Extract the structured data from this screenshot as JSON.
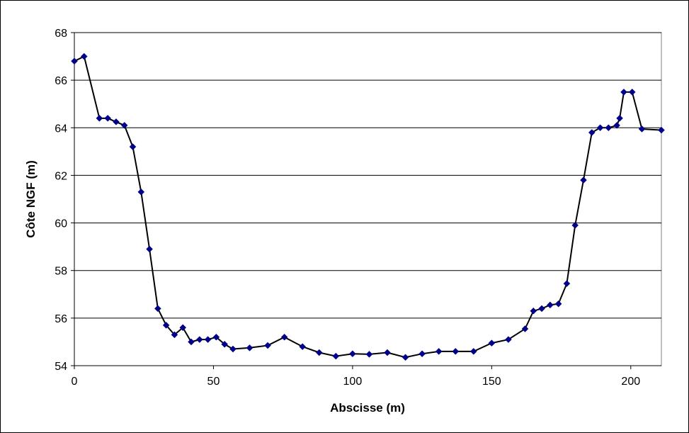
{
  "chart_data": {
    "type": "line",
    "title": "",
    "xlabel": "Abscisse (m)",
    "ylabel": "Côte NGF (m)",
    "xlim": [
      0,
      211
    ],
    "ylim": [
      54,
      68
    ],
    "xticks": [
      0,
      50,
      100,
      150,
      200
    ],
    "yticks": [
      54,
      56,
      58,
      60,
      62,
      64,
      66,
      68
    ],
    "grid": "horizontal",
    "legend": "none",
    "colors": {
      "line": "#000000",
      "marker": "#00008B",
      "grid": "#000000",
      "background": "#ffffff"
    },
    "series": [
      {
        "marker": "diamond",
        "points": [
          [
            0,
            66.8
          ],
          [
            3.5,
            67.0
          ],
          [
            9,
            64.4
          ],
          [
            12,
            64.4
          ],
          [
            15,
            64.25
          ],
          [
            18,
            64.1
          ],
          [
            21,
            63.2
          ],
          [
            24,
            61.3
          ],
          [
            27,
            58.9
          ],
          [
            30,
            56.4
          ],
          [
            33,
            55.7
          ],
          [
            36,
            55.3
          ],
          [
            39,
            55.6
          ],
          [
            42,
            55.0
          ],
          [
            45,
            55.1
          ],
          [
            48,
            55.1
          ],
          [
            51,
            55.2
          ],
          [
            54,
            54.9
          ],
          [
            57,
            54.7
          ],
          [
            63,
            54.75
          ],
          [
            69.5,
            54.85
          ],
          [
            75.5,
            55.2
          ],
          [
            82,
            54.8
          ],
          [
            88,
            54.55
          ],
          [
            94,
            54.4
          ],
          [
            100,
            54.5
          ],
          [
            106,
            54.48
          ],
          [
            112.5,
            54.55
          ],
          [
            119,
            54.35
          ],
          [
            125,
            54.5
          ],
          [
            131,
            54.6
          ],
          [
            137,
            54.6
          ],
          [
            143.5,
            54.6
          ],
          [
            150,
            54.95
          ],
          [
            156,
            55.1
          ],
          [
            162,
            55.55
          ],
          [
            165,
            56.3
          ],
          [
            168,
            56.4
          ],
          [
            171,
            56.55
          ],
          [
            174,
            56.6
          ],
          [
            177,
            57.45
          ],
          [
            180,
            59.9
          ],
          [
            183,
            61.8
          ],
          [
            186,
            63.8
          ],
          [
            189,
            64.0
          ],
          [
            192,
            64.0
          ],
          [
            195,
            64.1
          ],
          [
            196,
            64.4
          ],
          [
            197.5,
            65.5
          ],
          [
            200.5,
            65.5
          ],
          [
            204,
            63.95
          ],
          [
            211,
            63.9
          ]
        ]
      }
    ]
  }
}
